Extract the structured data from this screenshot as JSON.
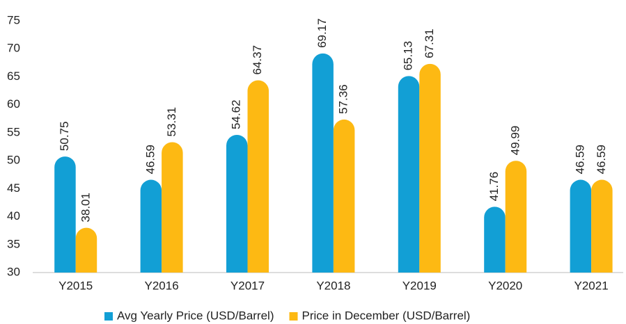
{
  "chart_data": {
    "type": "bar",
    "categories": [
      "Y2015",
      "Y2016",
      "Y2017",
      "Y2018",
      "Y2019",
      "Y2020",
      "Y2021"
    ],
    "series": [
      {
        "name": "Avg Yearly Price (USD/Barrel)",
        "color": "#129fd5",
        "values": [
          50.75,
          46.59,
          54.62,
          69.17,
          65.13,
          41.76,
          46.59
        ]
      },
      {
        "name": "Price in December (USD/Barrel)",
        "color": "#fdb913",
        "values": [
          38.01,
          53.31,
          64.37,
          57.36,
          67.31,
          49.99,
          46.59
        ]
      }
    ],
    "ylim": [
      30,
      75
    ],
    "yticks": [
      30,
      35,
      40,
      45,
      50,
      55,
      60,
      65,
      70,
      75
    ],
    "grid": false,
    "legend": "bottom"
  }
}
